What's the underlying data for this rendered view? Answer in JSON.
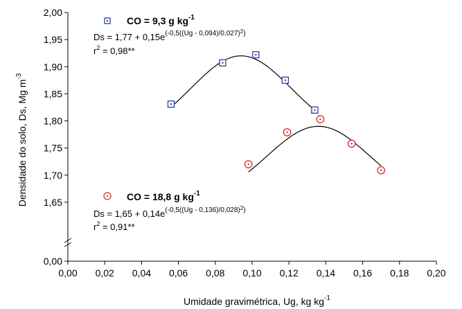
{
  "chart_data": {
    "type": "scatter",
    "xlabel": "Umidade gravimétrica, Ug, kg kg",
    "xlabel_sup": "-1",
    "ylabel": "Densidade do solo, Ds, Mg m",
    "ylabel_sup": "-3",
    "xlim": [
      0.0,
      0.2
    ],
    "ylim": [
      1.6,
      2.0
    ],
    "x_ticks": [
      "0,00",
      "0,02",
      "0,04",
      "0,06",
      "0,08",
      "0,10",
      "0,12",
      "0,14",
      "0,16",
      "0,18",
      "0,20"
    ],
    "y_ticks": [
      "0,00",
      "1,65",
      "1,70",
      "1,75",
      "1,80",
      "1,85",
      "1,90",
      "1,95",
      "2,00"
    ],
    "axis_break": "y",
    "grid": false,
    "series": [
      {
        "name": "CO = 9,3 g kg",
        "name_sup": "-1",
        "marker": "square-dot",
        "color": "#2b3f9c",
        "points": [
          {
            "x": 0.056,
            "y": 1.831
          },
          {
            "x": 0.084,
            "y": 1.907
          },
          {
            "x": 0.102,
            "y": 1.922
          },
          {
            "x": 0.118,
            "y": 1.875
          },
          {
            "x": 0.134,
            "y": 1.82
          }
        ],
        "fit": {
          "a": 1.77,
          "b": 0.15,
          "x0": 0.094,
          "s": 0.027,
          "x_from": 0.056,
          "x_to": 0.134
        },
        "equation_main": "Ds = 1,77 + 0,15e",
        "equation_exp": "(-0,5((Ug - 0,094)/0,027)",
        "equation_exp_sq": "2",
        "equation_close": ")",
        "r2_prefix": "r",
        "r2_sup": "2",
        "r2_value": " = 0,98**"
      },
      {
        "name": "CO = 18,8 g kg",
        "name_sup": "-1",
        "marker": "circle-dot",
        "color": "#d12b2b",
        "points": [
          {
            "x": 0.098,
            "y": 1.72
          },
          {
            "x": 0.119,
            "y": 1.779
          },
          {
            "x": 0.137,
            "y": 1.803
          },
          {
            "x": 0.154,
            "y": 1.758
          },
          {
            "x": 0.17,
            "y": 1.709
          }
        ],
        "fit": {
          "a": 1.65,
          "b": 0.14,
          "x0": 0.136,
          "s": 0.028,
          "x_from": 0.098,
          "x_to": 0.17
        },
        "equation_main": "Ds = 1,65 + 0,14e",
        "equation_exp": "(-0,5((Ug - 0,136)/0,028)",
        "equation_exp_sq": "2",
        "equation_close": ")",
        "r2_prefix": "r",
        "r2_sup": "2",
        "r2_value": " = 0,91**"
      }
    ]
  }
}
